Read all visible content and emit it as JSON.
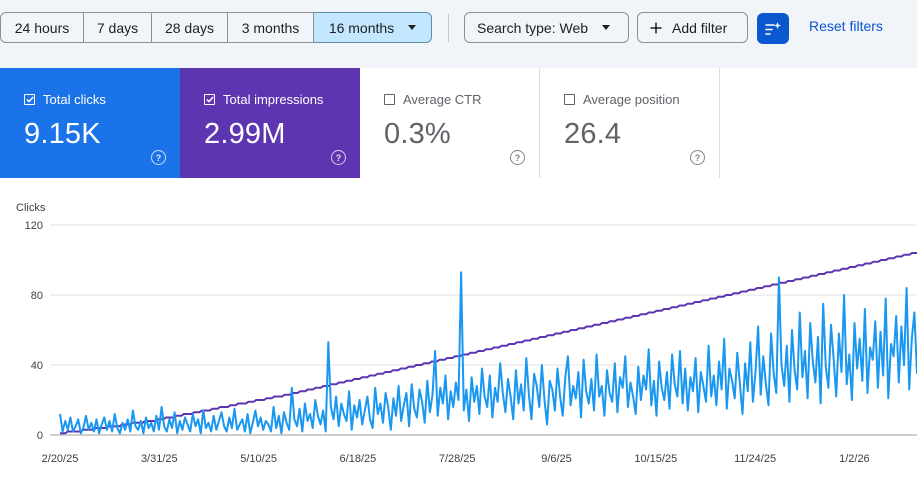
{
  "toolbar": {
    "ranges": [
      {
        "label": "24 hours",
        "selected": false
      },
      {
        "label": "7 days",
        "selected": false
      },
      {
        "label": "28 days",
        "selected": false
      },
      {
        "label": "3 months",
        "selected": false
      },
      {
        "label": "16 months",
        "selected": true
      }
    ],
    "search_type": "Search type: Web",
    "add_filter": "Add filter",
    "reset_filters": "Reset filters"
  },
  "metrics": [
    {
      "label": "Total clicks",
      "value": "9.15K",
      "checked": true,
      "color": "#1a73e8"
    },
    {
      "label": "Total impressions",
      "value": "2.99M",
      "checked": true,
      "color": "#5e35b1"
    },
    {
      "label": "Average CTR",
      "value": "0.3%",
      "checked": false,
      "color": "#ffffff"
    },
    {
      "label": "Average position",
      "value": "26.4",
      "checked": false,
      "color": "#ffffff"
    }
  ],
  "chart_data": {
    "type": "line",
    "ylabel": "Clicks",
    "ylim": [
      0,
      120
    ],
    "yticks": [
      0,
      40,
      80,
      120
    ],
    "xticks": [
      "2/20/25",
      "3/31/25",
      "5/10/25",
      "6/18/25",
      "7/28/25",
      "9/6/25",
      "10/15/25",
      "11/24/25",
      "1/2/26"
    ],
    "x_range_days": [
      0,
      354
    ],
    "grid": true,
    "series": [
      {
        "metric": "Total clicks",
        "color": "#1a97f0",
        "values": [
          12,
          2,
          8,
          3,
          10,
          2,
          5,
          9,
          1,
          4,
          11,
          3,
          7,
          2,
          9,
          1,
          6,
          10,
          3,
          8,
          2,
          12,
          4,
          1,
          7,
          3,
          9,
          2,
          14,
          5,
          3,
          8,
          1,
          10,
          4,
          7,
          2,
          11,
          3,
          16,
          5,
          2,
          9,
          4,
          13,
          1,
          8,
          3,
          10,
          6,
          2,
          12,
          5,
          9,
          1,
          14,
          4,
          7,
          2,
          11,
          3,
          8,
          13,
          5,
          2,
          10,
          4,
          15,
          3,
          6,
          9,
          2,
          12,
          1,
          7,
          14,
          5,
          10,
          3,
          8,
          6,
          2,
          16,
          4,
          11,
          1,
          13,
          7,
          3,
          27,
          9,
          5,
          15,
          2,
          18,
          8,
          12,
          4,
          20,
          11,
          6,
          14,
          2,
          53,
          16,
          9,
          22,
          5,
          18,
          12,
          8,
          25,
          3,
          17,
          10,
          20,
          6,
          14,
          22,
          9,
          4,
          27,
          12,
          18,
          7,
          24,
          16,
          3,
          21,
          11,
          28,
          8,
          17,
          24,
          5,
          29,
          15,
          10,
          26,
          19,
          7,
          31,
          13,
          23,
          48,
          11,
          27,
          18,
          34,
          9,
          25,
          16,
          30,
          20,
          93,
          14,
          26,
          8,
          33,
          19,
          28,
          12,
          38,
          22,
          16,
          34,
          10,
          27,
          19,
          41,
          24,
          13,
          32,
          22,
          9,
          37,
          18,
          29,
          14,
          44,
          23,
          9,
          35,
          28,
          16,
          40,
          20,
          6,
          31,
          26,
          14,
          38,
          22,
          11,
          33,
          45,
          17,
          28,
          21,
          36,
          10,
          43,
          25,
          18,
          32,
          14,
          46,
          22,
          28,
          11,
          37,
          24,
          19,
          41,
          13,
          33,
          27,
          45,
          16,
          30,
          22,
          12,
          39,
          20,
          34,
          26,
          49,
          17,
          31,
          11,
          42,
          27,
          20,
          36,
          15,
          46,
          29,
          22,
          48,
          18,
          38,
          14,
          33,
          25,
          44,
          13,
          36,
          28,
          19,
          51,
          22,
          34,
          17,
          42,
          26,
          55,
          15,
          38,
          31,
          21,
          47,
          29,
          12,
          41,
          25,
          53,
          19,
          36,
          62,
          23,
          45,
          29,
          17,
          58,
          35,
          24,
          90,
          40,
          28,
          51,
          19,
          60,
          37,
          26,
          70,
          33,
          48,
          21,
          64,
          42,
          30,
          56,
          18,
          75,
          39,
          27,
          63,
          44,
          22,
          58,
          36,
          80,
          29,
          46,
          20,
          64,
          38,
          55,
          31,
          72,
          24,
          50,
          43,
          65,
          27,
          59,
          34,
          78,
          21,
          52,
          45,
          68,
          30,
          62,
          40,
          84,
          26,
          55,
          70,
          35
        ]
      },
      {
        "metric": "Total impressions",
        "color": "#5e35b1",
        "values": [
          1,
          1,
          1,
          2,
          2,
          2,
          2,
          2,
          2,
          3,
          3,
          3,
          3,
          3,
          4,
          4,
          4,
          4,
          4,
          5,
          5,
          5,
          5,
          5,
          6,
          6,
          6,
          6,
          7,
          7,
          7,
          7,
          7,
          8,
          8,
          8,
          8,
          8,
          9,
          9,
          9,
          10,
          10,
          10,
          10,
          11,
          11,
          11,
          12,
          12,
          12,
          12,
          13,
          13,
          13,
          14,
          14,
          14,
          14,
          15,
          15,
          15,
          16,
          16,
          16,
          16,
          17,
          17,
          17,
          18,
          18,
          18,
          18,
          19,
          19,
          19,
          20,
          20,
          20,
          20,
          21,
          21,
          21,
          22,
          22,
          22,
          22,
          23,
          23,
          23,
          24,
          24,
          24,
          25,
          25,
          25,
          26,
          26,
          26,
          27,
          27,
          27,
          28,
          28,
          28,
          29,
          29,
          29,
          30,
          30,
          30,
          31,
          31,
          31,
          32,
          32,
          32,
          33,
          33,
          33,
          34,
          34,
          34,
          35,
          35,
          35,
          36,
          36,
          36,
          37,
          37,
          37,
          38,
          38,
          38,
          39,
          39,
          39,
          40,
          40,
          40,
          41,
          41,
          41,
          42,
          42,
          42,
          43,
          43,
          43,
          44,
          44,
          44,
          45,
          45,
          45,
          46,
          46,
          46,
          47,
          47,
          47,
          48,
          48,
          48,
          49,
          49,
          49,
          50,
          50,
          50,
          51,
          51,
          51,
          52,
          52,
          52,
          53,
          53,
          53,
          54,
          54,
          54,
          55,
          55,
          55,
          56,
          56,
          56,
          57,
          57,
          57,
          58,
          58,
          58,
          59,
          59,
          59,
          60,
          60,
          60,
          61,
          61,
          61,
          62,
          62,
          62,
          63,
          63,
          63,
          64,
          64,
          64,
          65,
          65,
          65,
          66,
          66,
          66,
          67,
          67,
          67,
          68,
          68,
          68,
          69,
          69,
          69,
          70,
          70,
          70,
          71,
          71,
          71,
          72,
          72,
          72,
          73,
          73,
          73,
          74,
          74,
          74,
          75,
          75,
          75,
          76,
          76,
          76,
          77,
          77,
          77,
          78,
          78,
          78,
          79,
          79,
          79,
          80,
          80,
          80,
          81,
          81,
          81,
          82,
          82,
          82,
          83,
          83,
          83,
          84,
          84,
          84,
          85,
          85,
          85,
          86,
          86,
          86,
          87,
          87,
          87,
          88,
          88,
          88,
          89,
          89,
          89,
          90,
          90,
          90,
          91,
          91,
          91,
          92,
          92,
          92,
          93,
          93,
          93,
          94,
          94,
          94,
          95,
          95,
          95,
          96,
          96,
          96,
          97,
          97,
          97,
          98,
          98,
          98,
          99,
          99,
          99,
          100,
          100,
          100,
          101,
          101,
          101,
          102,
          102,
          102,
          103,
          103,
          103,
          104,
          104,
          104
        ]
      }
    ]
  }
}
